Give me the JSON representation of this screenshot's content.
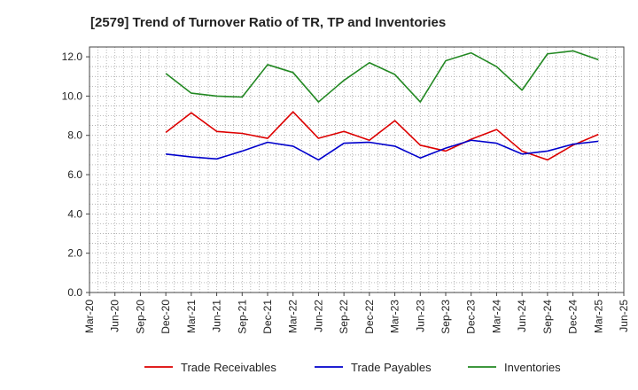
{
  "chart_data": {
    "type": "line",
    "title": "[2579]  Trend of Turnover Ratio of TR, TP and Inventories",
    "xlabel": "",
    "ylabel": "",
    "ylim": [
      0,
      12.5
    ],
    "yticks": [
      0.0,
      2.0,
      4.0,
      6.0,
      8.0,
      10.0,
      12.0
    ],
    "ytick_labels": [
      "0.0",
      "2.0",
      "4.0",
      "6.0",
      "8.0",
      "10.0",
      "12.0"
    ],
    "xtick_labels": [
      "Mar-20",
      "Jun-20",
      "Sep-20",
      "Dec-20",
      "Mar-21",
      "Jun-21",
      "Sep-21",
      "Dec-21",
      "Mar-22",
      "Jun-22",
      "Sep-22",
      "Dec-22",
      "Mar-23",
      "Jun-23",
      "Sep-23",
      "Dec-23",
      "Mar-24",
      "Jun-24",
      "Sep-24",
      "Dec-24",
      "Mar-25",
      "Jun-25"
    ],
    "grid": true,
    "legend_position": "bottom",
    "series": [
      {
        "name": "Trade Receivables",
        "color": "#dd0000",
        "start_index": 3,
        "values": [
          8.15,
          9.15,
          8.2,
          8.1,
          7.85,
          9.2,
          7.85,
          8.2,
          7.75,
          8.75,
          7.5,
          7.2,
          7.8,
          8.3,
          7.2,
          6.75,
          7.5,
          8.05
        ]
      },
      {
        "name": "Trade Payables",
        "color": "#0000cc",
        "start_index": 3,
        "values": [
          7.05,
          6.9,
          6.8,
          7.2,
          7.65,
          7.45,
          6.75,
          7.6,
          7.65,
          7.45,
          6.85,
          7.35,
          7.75,
          7.6,
          7.05,
          7.2,
          7.55,
          7.7
        ]
      },
      {
        "name": "Inventories",
        "color": "#228822",
        "start_index": 3,
        "values": [
          11.15,
          10.15,
          10.0,
          9.95,
          11.6,
          11.2,
          9.7,
          10.8,
          11.7,
          11.1,
          9.7,
          11.8,
          12.2,
          11.5,
          10.3,
          12.15,
          12.3,
          11.85
        ]
      }
    ]
  }
}
